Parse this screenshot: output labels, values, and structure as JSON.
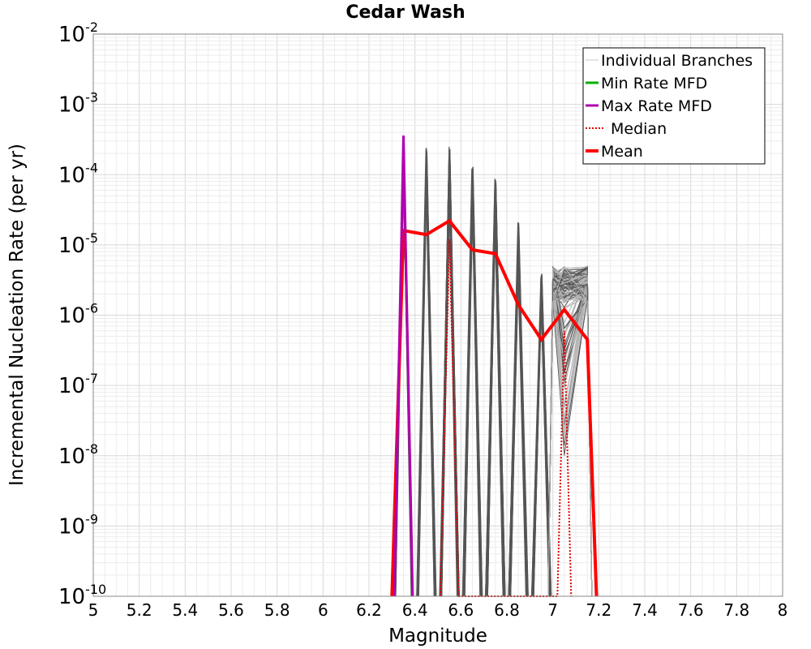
{
  "chart_data": {
    "type": "line",
    "title": "Cedar Wash",
    "xlabel": "Magnitude",
    "ylabel": "Incremental Nucleation Rate (per yr)",
    "xlim": [
      5,
      8
    ],
    "ylim": [
      1e-10,
      0.01
    ],
    "yscale": "log",
    "grid": true,
    "legend_position": "top-right",
    "x_ticks": [
      "5",
      "5.2",
      "5.4",
      "5.6",
      "5.8",
      "6",
      "6.2",
      "6.4",
      "6.6",
      "6.8",
      "7",
      "7.2",
      "7.4",
      "7.6",
      "7.8",
      "8"
    ],
    "y_ticks": [
      {
        "base": "10",
        "exp": "-10",
        "value": 1e-10
      },
      {
        "base": "10",
        "exp": "-9",
        "value": 1e-09
      },
      {
        "base": "10",
        "exp": "-8",
        "value": 1e-08
      },
      {
        "base": "10",
        "exp": "-7",
        "value": 1e-07
      },
      {
        "base": "10",
        "exp": "-6",
        "value": 1e-06
      },
      {
        "base": "10",
        "exp": "-5",
        "value": 1e-05
      },
      {
        "base": "10",
        "exp": "-4",
        "value": 0.0001
      },
      {
        "base": "10",
        "exp": "-3",
        "value": 0.001
      },
      {
        "base": "10",
        "exp": "-2",
        "value": 0.01
      }
    ],
    "legend": [
      {
        "label": "Individual Branches",
        "color": "#c8c8c8",
        "style": "thin"
      },
      {
        "label": "Min Rate MFD",
        "color": "#00b000",
        "style": "solid"
      },
      {
        "label": "Max Rate MFD",
        "color": "#b000b0",
        "style": "solid"
      },
      {
        "label": "Median",
        "color": "#e00000",
        "style": "dotted"
      },
      {
        "label": "Mean",
        "color": "#ff0000",
        "style": "thick"
      }
    ],
    "series": [
      {
        "name": "Mean",
        "color": "#ff0000",
        "x": [
          6.3,
          6.35,
          6.45,
          6.55,
          6.65,
          6.75,
          6.85,
          6.95,
          7.05,
          7.15,
          7.19
        ],
        "y": [
          1e-10,
          1.6e-05,
          1.4e-05,
          2.2e-05,
          8.5e-06,
          7.5e-06,
          1.4e-06,
          4.5e-07,
          1.2e-06,
          4.5e-07,
          1e-10
        ]
      },
      {
        "name": "Max Rate MFD",
        "color": "#b000b0",
        "x": [
          6.31,
          6.35,
          6.39
        ],
        "y": [
          1e-10,
          0.00036,
          1e-10
        ]
      },
      {
        "name": "Median",
        "color": "#e00000",
        "x": [
          6.51,
          6.55,
          6.59,
          6.62,
          7.02,
          7.05,
          7.08
        ],
        "y": [
          1e-10,
          1.2e-05,
          1e-10,
          1e-10,
          1e-10,
          6e-07,
          1e-10
        ]
      }
    ],
    "branch_spikes": [
      {
        "x": 6.35,
        "peak": 0.00036
      },
      {
        "x": 6.45,
        "peak": 0.00025
      },
      {
        "x": 6.55,
        "peak": 0.00025
      },
      {
        "x": 6.65,
        "peak": 0.00013
      },
      {
        "x": 6.75,
        "peak": 9e-05
      },
      {
        "x": 6.85,
        "peak": 2.1e-05
      },
      {
        "x": 6.95,
        "peak": 4e-06
      }
    ],
    "branch_plateau": {
      "x": [
        7.0,
        7.15
      ],
      "low": 1.5e-06,
      "high": 5e-06
    }
  }
}
